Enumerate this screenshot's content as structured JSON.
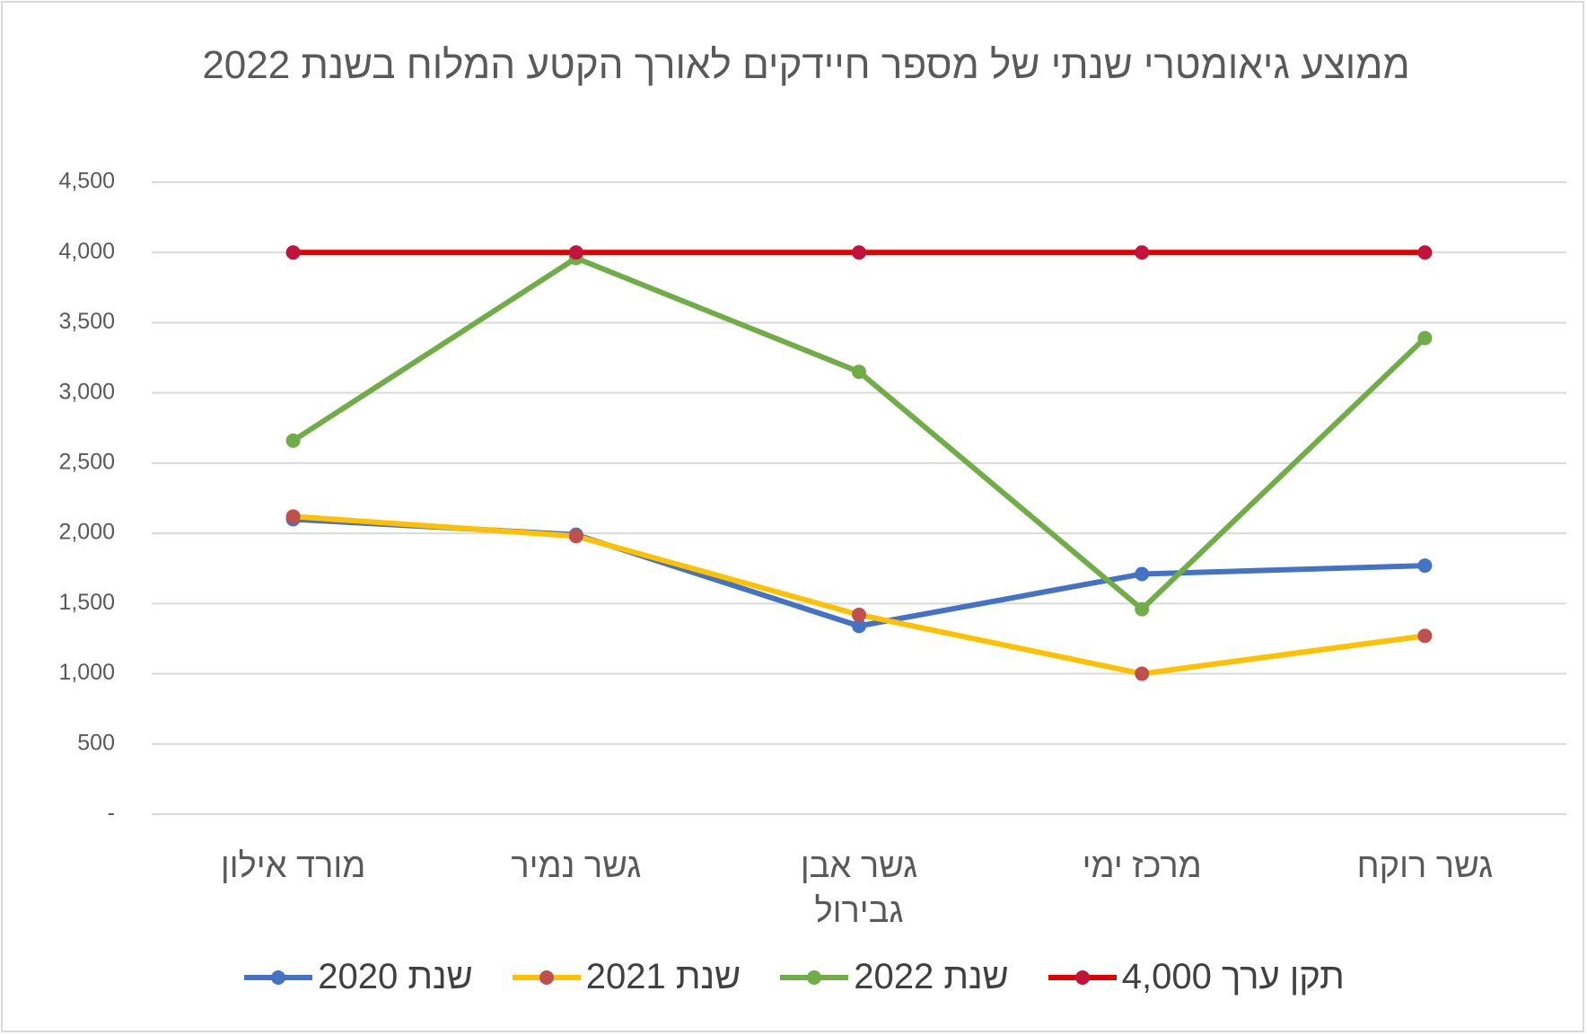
{
  "chart_data": {
    "type": "line",
    "title": "ממוצע גיאומטרי שנתי של מספר חיידקים לאורך הקטע המלוח בשנת 2022",
    "categories": [
      "מורד אילון",
      "גשר נמיר",
      "גשר אבן גבירול",
      "מרכז ימי",
      "גשר רוקח"
    ],
    "series": [
      {
        "name": "שנת 2020",
        "color": "#4472c4",
        "marker_color": "#4472c4",
        "values": [
          2100,
          1990,
          1340,
          1710,
          1770
        ]
      },
      {
        "name": "שנת 2021",
        "color": "#ffc000",
        "marker_color": "#c0504d",
        "values": [
          2120,
          1980,
          1420,
          1000,
          1270
        ]
      },
      {
        "name": "שנת 2022",
        "color": "#70ad47",
        "marker_color": "#70ad47",
        "values": [
          2660,
          3960,
          3150,
          1460,
          3390
        ]
      },
      {
        "name": "תקן ערך 4,000",
        "color": "#e00000",
        "marker_color": "#c0143c",
        "values": [
          4000,
          4000,
          4000,
          4000,
          4000
        ]
      }
    ],
    "ylim": [
      0,
      4500
    ],
    "yticks": [
      {
        "value": 0,
        "label": "-"
      },
      500,
      {
        "value": 1000,
        "label": "1,000"
      },
      {
        "value": 1500,
        "label": "1,500"
      },
      {
        "value": 2000,
        "label": "2,000"
      },
      {
        "value": 2500,
        "label": "2,500"
      },
      {
        "value": 3000,
        "label": "3,000"
      },
      {
        "value": 3500,
        "label": "3,500"
      },
      {
        "value": 4000,
        "label": "4,000"
      },
      {
        "value": 4500,
        "label": "4,500"
      }
    ],
    "grid": true,
    "legend": "bottom"
  }
}
